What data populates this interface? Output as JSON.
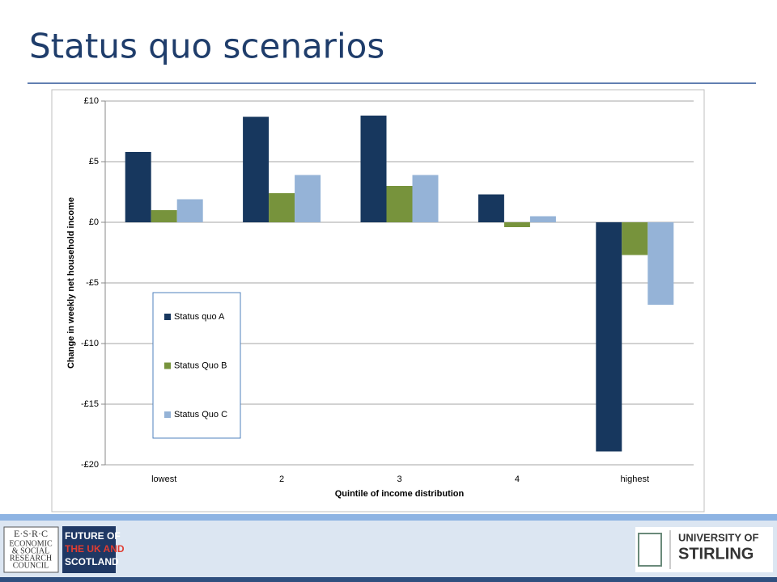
{
  "slide": {
    "title": "Status quo scenarios"
  },
  "footer": {
    "esrc": [
      "E·S·R·C",
      "ECONOMIC",
      "& SOCIAL",
      "RESEARCH",
      "COUNCIL"
    ],
    "future": [
      "FUTURE OF",
      "THE UK AND",
      "SCOTLAND"
    ],
    "university": [
      "UNIVERSITY OF",
      "STIRLING"
    ]
  },
  "chart_data": {
    "type": "bar",
    "xlabel": "Quintile of income distribution",
    "ylabel": "Change in weekly net household income",
    "categories": [
      "lowest",
      "2",
      "3",
      "4",
      "highest"
    ],
    "series": [
      {
        "name": "Status quo A",
        "color": "#17375e",
        "values": [
          5.8,
          8.7,
          8.8,
          2.3,
          -18.9
        ]
      },
      {
        "name": "Status Quo B",
        "color": "#77933c",
        "values": [
          1.0,
          2.4,
          3.0,
          -0.4,
          -2.7
        ]
      },
      {
        "name": "Status Quo C",
        "color": "#95b3d7",
        "values": [
          1.9,
          3.9,
          3.9,
          0.5,
          -6.8
        ]
      }
    ],
    "ylim": [
      -20,
      10
    ],
    "yticks": [
      {
        "value": 10,
        "label": "£10"
      },
      {
        "value": 5,
        "label": "£5"
      },
      {
        "value": 0,
        "label": "£0"
      },
      {
        "value": -5,
        "label": "-£5"
      },
      {
        "value": -10,
        "label": "-£10"
      },
      {
        "value": -15,
        "label": "-£15"
      },
      {
        "value": -20,
        "label": "-£20"
      }
    ],
    "grid": true,
    "legend": "left"
  }
}
